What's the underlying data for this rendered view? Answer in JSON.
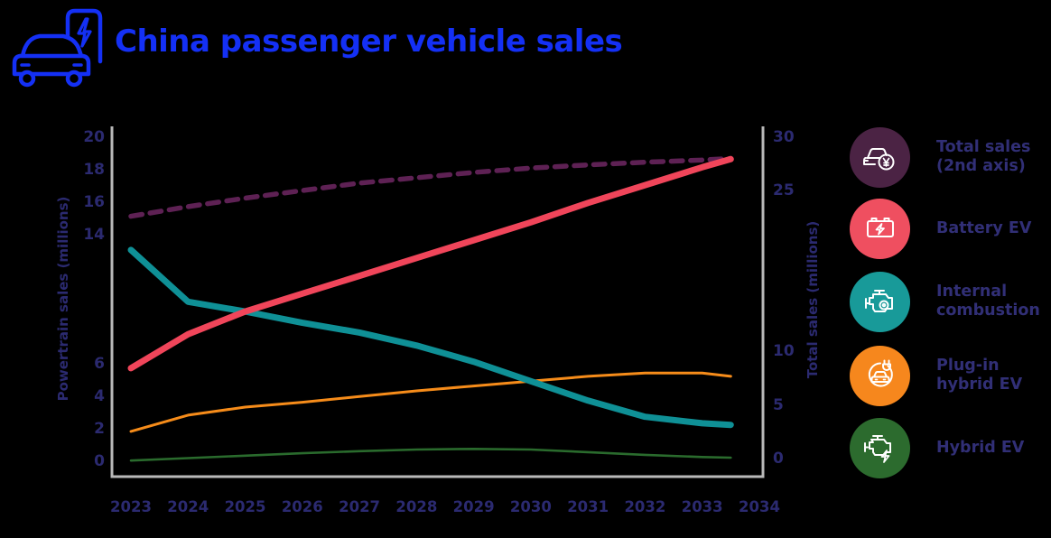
{
  "header": {
    "title": "China passenger vehicle sales",
    "title_color": "#1430f5",
    "icon": "ev-car-charging-icon"
  },
  "chart_data": {
    "type": "line",
    "title": "China passenger vehicle sales",
    "x": [
      2023,
      2024,
      2025,
      2026,
      2027,
      2028,
      2029,
      2030,
      2031,
      2032,
      2033,
      2033.5
    ],
    "x_axis": {
      "ticks": [
        "2023",
        "2024",
        "2025",
        "2026",
        "2027",
        "2028",
        "2029",
        "2030",
        "2031",
        "2032",
        "2033",
        "2034"
      ]
    },
    "left_axis": {
      "label": "Powertrain sales (millions)",
      "range": [
        0,
        20
      ],
      "visible_ticks": [
        0,
        2,
        4,
        6,
        14,
        16,
        18,
        20
      ]
    },
    "right_axis": {
      "label": "Total sales (millions)",
      "range": [
        0,
        30
      ],
      "visible_ticks": [
        0,
        5,
        10,
        25,
        30
      ]
    },
    "grid": false,
    "legend_position": "right",
    "series": [
      {
        "name": "Total sales (2nd axis)",
        "axis": "right",
        "style": "dashed",
        "color": "#5e2154",
        "values": [
          22.7,
          23.6,
          24.4,
          25.1,
          25.8,
          26.3,
          26.8,
          27.2,
          27.5,
          27.75,
          27.95,
          28.1
        ]
      },
      {
        "name": "Battery EV",
        "axis": "left",
        "style": "solid",
        "color": "#f0455a",
        "values": [
          5.8,
          7.9,
          9.3,
          10.4,
          11.5,
          12.6,
          13.7,
          14.8,
          16.0,
          17.1,
          18.2,
          18.7
        ]
      },
      {
        "name": "Internal combustion",
        "axis": "left",
        "style": "solid",
        "color": "#0f9096",
        "values": [
          13.1,
          9.9,
          9.3,
          8.6,
          8.0,
          7.2,
          6.2,
          5.0,
          3.8,
          2.8,
          2.4,
          2.3
        ]
      },
      {
        "name": "Plug-in hybrid EV",
        "axis": "left",
        "style": "solid",
        "color": "#f68c1a",
        "values": [
          1.9,
          2.9,
          3.4,
          3.7,
          4.05,
          4.4,
          4.7,
          5.0,
          5.3,
          5.5,
          5.5,
          5.3
        ]
      },
      {
        "name": "Hybrid EV",
        "axis": "left",
        "style": "solid",
        "color": "#2a6b2d",
        "values": [
          0.1,
          0.25,
          0.4,
          0.55,
          0.68,
          0.78,
          0.82,
          0.78,
          0.62,
          0.45,
          0.32,
          0.28
        ]
      }
    ]
  },
  "legend": {
    "items": [
      {
        "label": "Total sales\n(2nd axis)",
        "color": "#4b2344",
        "icon": "car-yen-coin-icon"
      },
      {
        "label": "Battery EV",
        "color": "#ef4f60",
        "icon": "battery-bolt-icon"
      },
      {
        "label": "Internal\ncombustion",
        "color": "#189a99",
        "icon": "engine-icon"
      },
      {
        "label": "Plug-in\nhybrid EV",
        "color": "#f6871d",
        "icon": "plug-car-icon"
      },
      {
        "label": "Hybrid EV",
        "color": "#2c6b2e",
        "icon": "engine-bolt-icon"
      }
    ]
  }
}
